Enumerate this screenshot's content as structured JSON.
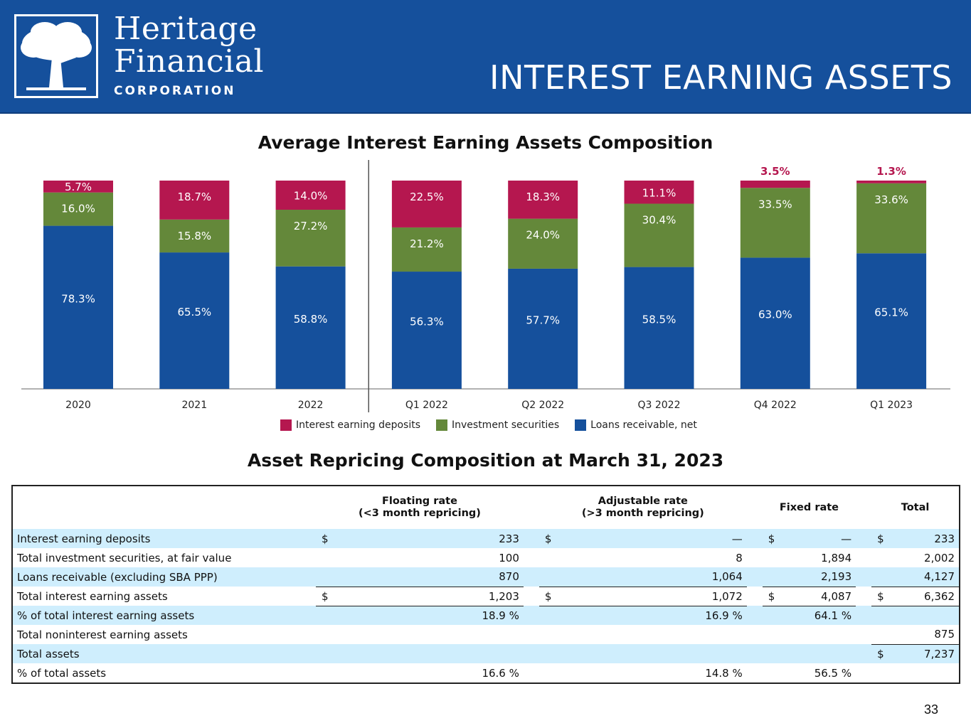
{
  "header": {
    "logo_line1": "Heritage",
    "logo_line2": "Financial",
    "logo_line3": "CORPORATION",
    "title": "INTEREST EARNING ASSETS",
    "bg_color": "#15509c"
  },
  "colors": {
    "deposits": "#b5174f",
    "securities": "#64883a",
    "loans": "#15509c"
  },
  "chart_data": {
    "type": "bar",
    "stacked": true,
    "title": "Average Interest Earning Assets Composition",
    "categories": [
      "2020",
      "2021",
      "2022",
      "Q1 2022",
      "Q2 2022",
      "Q3 2022",
      "Q4 2022",
      "Q1 2023"
    ],
    "series": [
      {
        "name": "Loans receivable, net",
        "values": [
          78.3,
          65.5,
          58.8,
          56.3,
          57.7,
          58.5,
          63.0,
          65.1
        ],
        "labels": [
          "78.3%",
          "65.5%",
          "58.8%",
          "56.3%",
          "57.7%",
          "58.5%",
          "63.0%",
          "65.1%"
        ]
      },
      {
        "name": "Investment securities",
        "values": [
          16.0,
          15.8,
          27.2,
          21.2,
          24.0,
          30.4,
          33.5,
          33.6
        ],
        "labels": [
          "16.0%",
          "15.8%",
          "27.2%",
          "21.2%",
          "24.0%",
          "30.4%",
          "33.5%",
          "33.6%"
        ]
      },
      {
        "name": "Interest earning deposits",
        "values": [
          5.7,
          18.7,
          14.0,
          22.5,
          18.3,
          11.1,
          3.5,
          1.3
        ],
        "labels": [
          "5.7%",
          "18.7%",
          "14.0%",
          "22.5%",
          "18.3%",
          "11.1%",
          "3.5%",
          "1.3%"
        ]
      }
    ],
    "legend": [
      "Interest earning deposits",
      "Investment securities",
      "Loans receivable, net"
    ],
    "ylim": [
      0,
      100
    ],
    "divider_after": "2022"
  },
  "table": {
    "title": "Asset Repricing Composition at March 31, 2023",
    "headers": {
      "floating_1": "Floating rate",
      "floating_2": "(<3 month repricing)",
      "adjustable_1": "Adjustable rate",
      "adjustable_2": "(>3 month repricing)",
      "fixed": "Fixed rate",
      "total": "Total"
    },
    "currency": "$",
    "rows": [
      {
        "label": "Interest earning deposits",
        "floating": "233",
        "adjustable": "—",
        "fixed": "—",
        "total": "233"
      },
      {
        "label": "Total investment securities, at fair value",
        "floating": "100",
        "adjustable": "8",
        "fixed": "1,894",
        "total": "2,002"
      },
      {
        "label": "Loans receivable (excluding SBA PPP)",
        "floating": "870",
        "adjustable": "1,064",
        "fixed": "2,193",
        "total": "4,127"
      },
      {
        "label": "Total interest earning assets",
        "floating": "1,203",
        "adjustable": "1,072",
        "fixed": "4,087",
        "total": "6,362"
      },
      {
        "label": "% of total interest earning assets",
        "floating": "18.9 %",
        "adjustable": "16.9 %",
        "fixed": "64.1 %",
        "total": ""
      },
      {
        "label": "Total noninterest earning assets",
        "floating": "",
        "adjustable": "",
        "fixed": "",
        "total": "875"
      },
      {
        "label": "Total assets",
        "floating": "",
        "adjustable": "",
        "fixed": "",
        "total": "7,237"
      },
      {
        "label": "% of total assets",
        "floating": "16.6 %",
        "adjustable": "14.8 %",
        "fixed": "56.5 %",
        "total": ""
      }
    ]
  },
  "page_number": "33"
}
